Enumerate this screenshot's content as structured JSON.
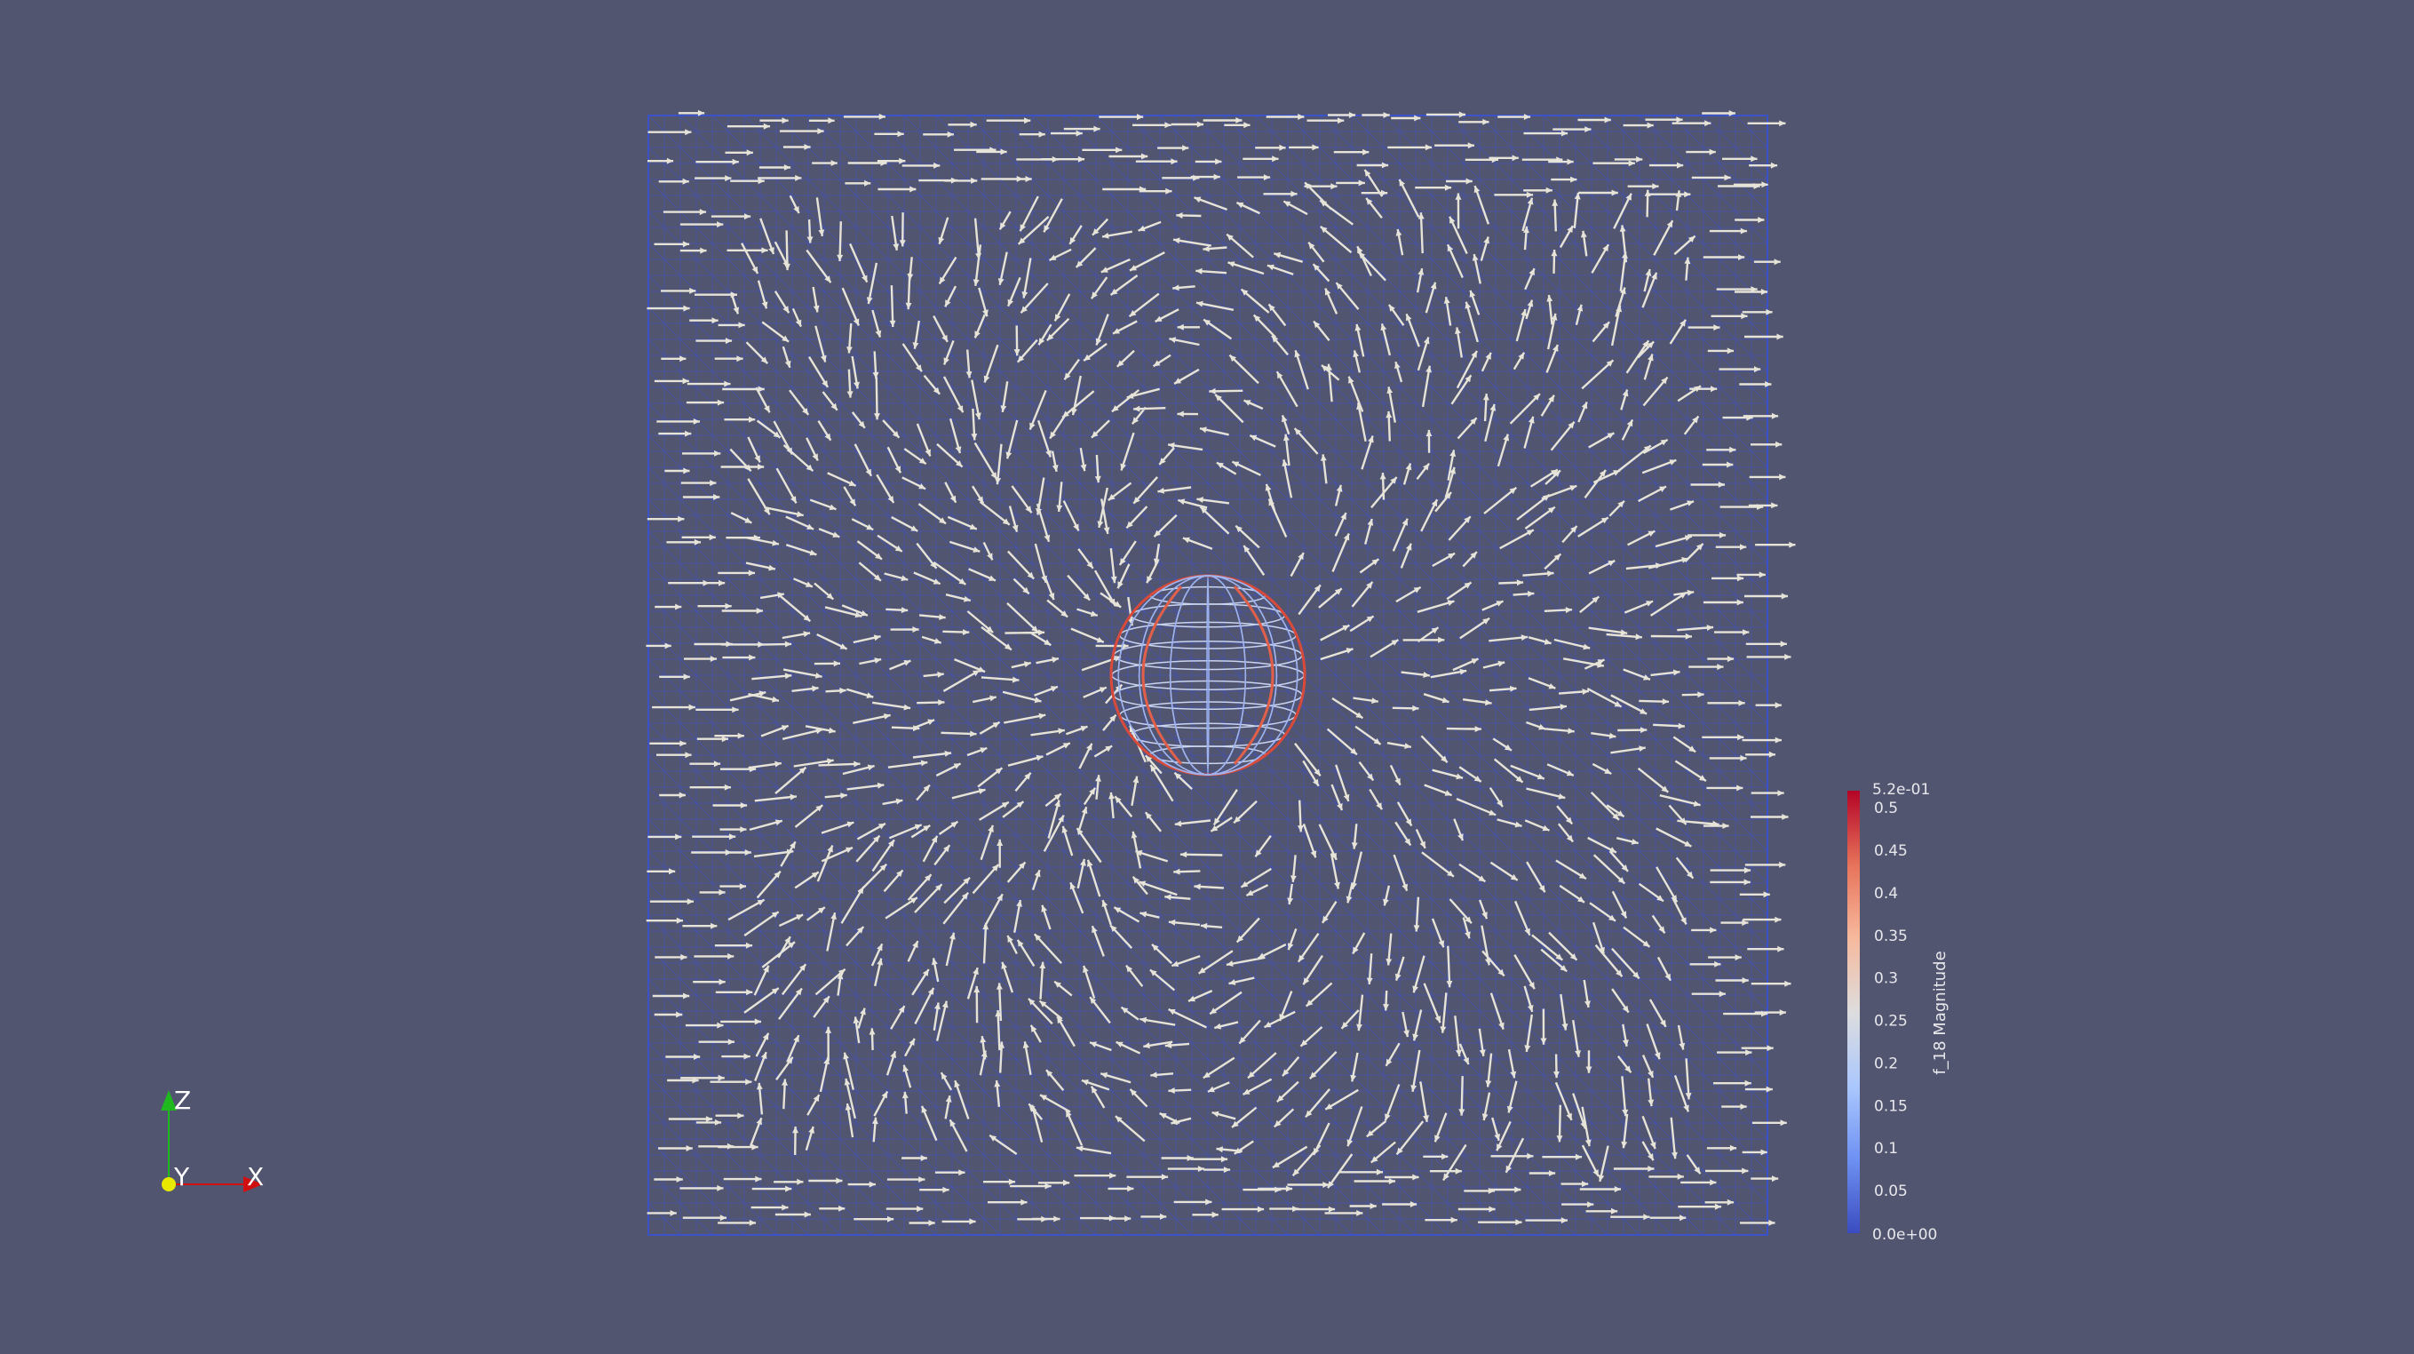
{
  "viewport": {
    "background": "#525570",
    "mesh_color": "#3c52c8",
    "glyph_color": "#e6e3d8"
  },
  "colorbar": {
    "title": "f_18 Magnitude",
    "range": [
      0.0,
      0.52
    ],
    "max_label": "5.2e-01",
    "min_label": "0.0e+00",
    "ticks": [
      "0.5",
      "0.45",
      "0.4",
      "0.35",
      "0.3",
      "0.25",
      "0.2",
      "0.15",
      "0.1",
      "0.05"
    ],
    "tick_values": [
      0.5,
      0.45,
      0.4,
      0.35,
      0.3,
      0.25,
      0.2,
      0.15,
      0.1,
      0.05
    ],
    "colormap": [
      "#3b4cc0",
      "#6f92f3",
      "#aac7fd",
      "#dddddd",
      "#f7b89c",
      "#e7745b",
      "#b40426"
    ]
  },
  "orientation_axes": {
    "z_label": "Z",
    "y_label": "Y",
    "x_label": "X",
    "z_color": "#1fb81f",
    "y_color": "#e8e800",
    "x_color": "#d01010"
  }
}
